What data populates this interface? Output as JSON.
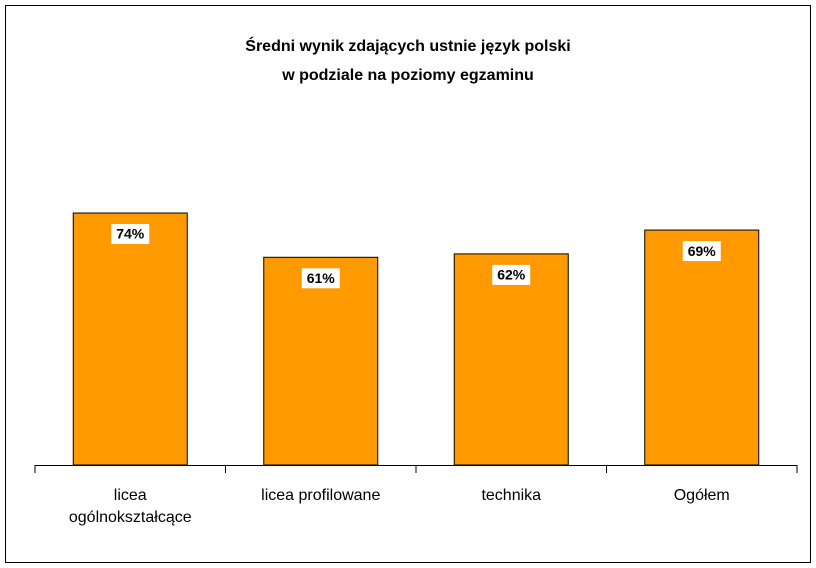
{
  "chart_data": {
    "type": "bar",
    "title": [
      "Średni wynik zdających ustnie język polski",
      "w podziale na poziomy egzaminu"
    ],
    "categories": [
      "licea\nogólnokształcące",
      "licea profilowane",
      "technika",
      "Ogółem"
    ],
    "values": [
      74,
      61,
      62,
      69
    ],
    "value_labels": [
      "74%",
      "61%",
      "62%",
      "69%"
    ],
    "color": "#ff9900"
  }
}
